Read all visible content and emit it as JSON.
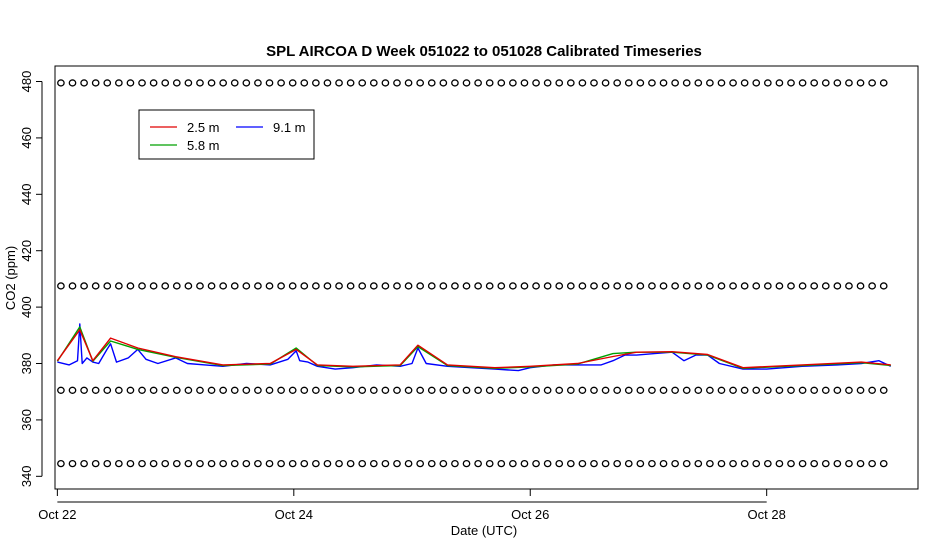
{
  "chart_data": {
    "type": "line",
    "title": "SPL AIRCOA D  Week 051022 to 051028  Calibrated Timeseries",
    "xlabel": "Date (UTC)",
    "ylabel": "CO2 (ppm)",
    "x_ticks": [
      "Oct 22",
      "Oct 24",
      "Oct 26",
      "Oct 28"
    ],
    "x_tick_days": [
      22,
      24,
      26,
      28
    ],
    "xlim": [
      21.98,
      29.28
    ],
    "ylim": [
      335.5,
      485.5
    ],
    "y_ticks": [
      340,
      360,
      380,
      400,
      420,
      440,
      460,
      480
    ],
    "legend": {
      "position": "top-left",
      "entries": [
        {
          "label": "2.5 m",
          "color": "#e00000"
        },
        {
          "label": "5.8 m",
          "color": "#00a000"
        },
        {
          "label": "9.1 m",
          "color": "#0000ff"
        }
      ]
    },
    "series": [
      {
        "name": "9.1 m",
        "color": "#0000ff",
        "x": [
          22.0,
          22.1,
          22.17,
          22.19,
          22.21,
          22.25,
          22.3,
          22.35,
          22.42,
          22.45,
          22.5,
          22.6,
          22.68,
          22.75,
          22.85,
          23.0,
          23.1,
          23.25,
          23.4,
          23.6,
          23.8,
          23.95,
          24.02,
          24.05,
          24.12,
          24.2,
          24.35,
          24.5,
          24.7,
          24.9,
          25.0,
          25.05,
          25.12,
          25.3,
          25.5,
          25.7,
          25.9,
          26.0,
          26.2,
          26.4,
          26.6,
          26.7,
          26.8,
          26.9,
          27.05,
          27.2,
          27.3,
          27.4,
          27.5,
          27.6,
          27.8,
          28.0,
          28.3,
          28.6,
          28.8,
          28.95,
          29.05
        ],
        "values": [
          380.5,
          379.5,
          381,
          394,
          380,
          382,
          380.5,
          380,
          385,
          387,
          380.5,
          382,
          385,
          381.5,
          380,
          382,
          380,
          379.5,
          379,
          380,
          379.5,
          381.5,
          384.5,
          381,
          380.5,
          379,
          378,
          378.5,
          379.5,
          379,
          380,
          385.5,
          380,
          379,
          378.5,
          378,
          377.5,
          378.5,
          379.5,
          379.5,
          379.5,
          381,
          383,
          383,
          383.5,
          384,
          381,
          383,
          383,
          380,
          378,
          378,
          379,
          379.5,
          380,
          381,
          379
        ]
      },
      {
        "name": "5.8 m",
        "color": "#00a000",
        "x": [
          22.0,
          22.19,
          22.3,
          22.45,
          22.68,
          23.0,
          23.4,
          23.8,
          24.02,
          24.2,
          24.5,
          24.9,
          25.05,
          25.3,
          25.7,
          26.0,
          26.4,
          26.7,
          26.9,
          27.2,
          27.5,
          27.8,
          28.3,
          28.8,
          29.05
        ],
        "values": [
          380.8,
          393,
          380.8,
          388,
          385,
          382.2,
          379.3,
          379.8,
          385.5,
          379.3,
          378.8,
          379.3,
          386,
          379.3,
          378.3,
          378.8,
          379.8,
          383.5,
          384,
          384,
          383,
          378.3,
          379.3,
          380.3,
          379.3
        ]
      },
      {
        "name": "2.5 m",
        "color": "#e00000",
        "x": [
          22.0,
          22.19,
          22.3,
          22.45,
          22.68,
          23.0,
          23.4,
          23.8,
          24.02,
          24.2,
          24.5,
          24.9,
          25.05,
          25.3,
          25.7,
          26.0,
          26.4,
          26.7,
          26.9,
          27.2,
          27.5,
          27.8,
          28.3,
          28.8,
          29.05
        ],
        "values": [
          381,
          392,
          381,
          389,
          385.5,
          382.4,
          379.5,
          380,
          385,
          379.5,
          379,
          379.5,
          386.5,
          379.5,
          378.5,
          379,
          380,
          382.5,
          384,
          384.2,
          383.2,
          378.5,
          379.5,
          380.5,
          379.5
        ]
      }
    ],
    "calibration_markers": {
      "levels": [
        479.5,
        407.5,
        370.5,
        344.5
      ],
      "marker": "o",
      "x_start": 22.03,
      "x_end": 28.99,
      "count_per_level": 72
    }
  }
}
